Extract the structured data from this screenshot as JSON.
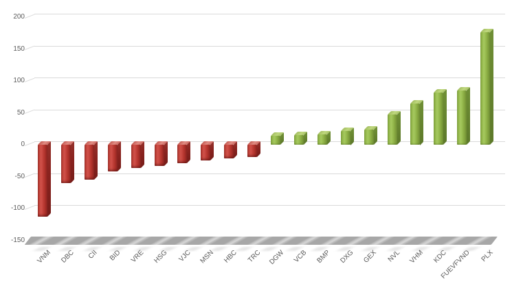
{
  "chart_data": {
    "type": "bar",
    "style": "excel-3d-column",
    "title": "",
    "xlabel": "",
    "ylabel": "",
    "categories": [
      "VNM",
      "DBC",
      "CII",
      "BID",
      "VRE",
      "HSG",
      "VJC",
      "MSN",
      "HBC",
      "TRC",
      "DGW",
      "VCB",
      "BMP",
      "DXG",
      "GEX",
      "NVL",
      "VHM",
      "KDC",
      "FUEVFVND",
      "PLX"
    ],
    "values": [
      -113,
      -60,
      -55,
      -42,
      -37,
      -33,
      -29,
      -25,
      -21,
      -19,
      14,
      15,
      16,
      22,
      24,
      47,
      65,
      82,
      85,
      176
    ],
    "ylim": [
      -150,
      200
    ],
    "yticks": [
      200,
      150,
      100,
      50,
      0,
      -50,
      -100,
      -150
    ],
    "grid": true,
    "legend": false,
    "x_label_rotation_deg": -45,
    "colors": {
      "positive": "#8FB347",
      "positive_side": "#66842F",
      "positive_top": "#B6D073",
      "negative": "#BE3A33",
      "negative_side": "#8A231F",
      "negative_top": "#D9776F",
      "gridline": "#D9D9D9",
      "axis_label": "#595959",
      "floor": "#A7A7A7",
      "floor_stripe": "#D6D6D6",
      "background": "#FFFFFF"
    }
  }
}
